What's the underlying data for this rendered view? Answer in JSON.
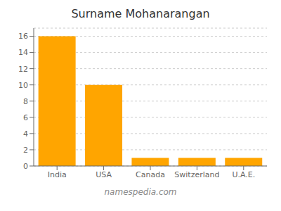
{
  "chart_data": {
    "type": "bar",
    "title": "Surname Mohanarangan",
    "categories": [
      "India",
      "USA",
      "Canada",
      "Switzerland",
      "U.A.E."
    ],
    "values": [
      16,
      10,
      1,
      1,
      1
    ],
    "color": "#FFA500",
    "ylim": [
      0,
      17
    ],
    "yticks": [
      0,
      2,
      4,
      6,
      8,
      10,
      12,
      14,
      16
    ],
    "grid": true,
    "annotations": [
      "namespedia.com"
    ]
  }
}
